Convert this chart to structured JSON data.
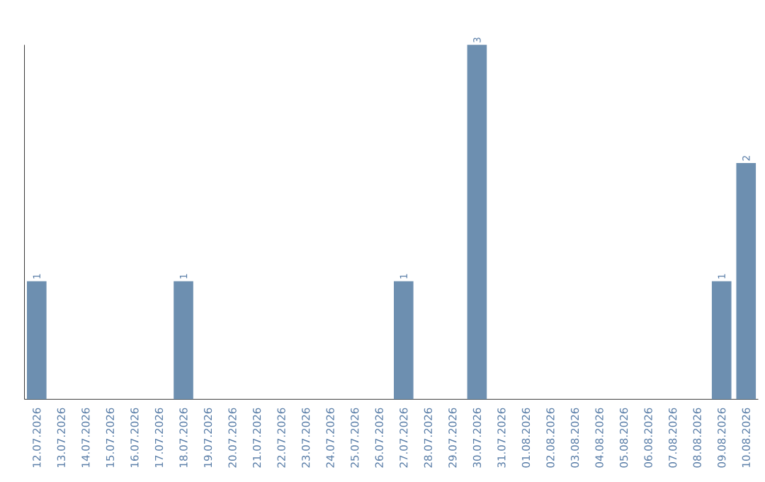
{
  "chart_data": {
    "type": "bar",
    "categories": [
      "12.07.2026",
      "13.07.2026",
      "14.07.2026",
      "15.07.2026",
      "16.07.2026",
      "17.07.2026",
      "18.07.2026",
      "19.07.2026",
      "20.07.2026",
      "21.07.2026",
      "22.07.2026",
      "23.07.2026",
      "24.07.2026",
      "25.07.2026",
      "26.07.2026",
      "27.07.2026",
      "28.07.2026",
      "29.07.2026",
      "30.07.2026",
      "31.07.2026",
      "01.08.2026",
      "02.08.2026",
      "03.08.2026",
      "04.08.2026",
      "05.08.2026",
      "06.08.2026",
      "07.08.2026",
      "08.08.2026",
      "09.08.2026",
      "10.08.2026"
    ],
    "values": [
      1,
      0,
      0,
      0,
      0,
      0,
      1,
      0,
      0,
      0,
      0,
      0,
      0,
      0,
      0,
      1,
      0,
      0,
      3,
      0,
      0,
      0,
      0,
      0,
      0,
      0,
      0,
      0,
      1,
      2
    ],
    "value_labels": [
      "1",
      null,
      null,
      null,
      null,
      null,
      "1",
      null,
      null,
      null,
      null,
      null,
      null,
      null,
      null,
      "1",
      null,
      null,
      "3",
      null,
      null,
      null,
      null,
      null,
      null,
      null,
      null,
      null,
      "1",
      "2"
    ],
    "color": "#6d8fb0",
    "ylim": [
      0,
      3
    ],
    "tick_labels": "x"
  }
}
